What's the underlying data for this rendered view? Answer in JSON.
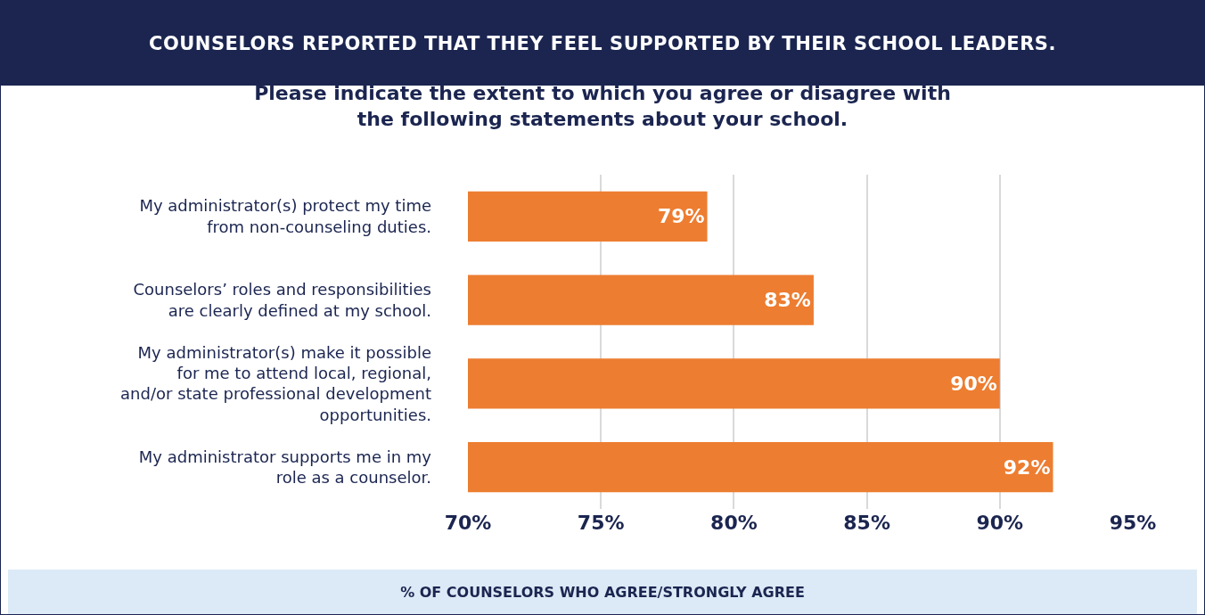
{
  "chart_data": {
    "type": "bar",
    "orientation": "horizontal",
    "title": "COUNSELORS REPORTED THAT THEY FEEL SUPPORTED BY THEIR SCHOOL LEADERS.",
    "subtitle": "Please indicate the extent to which you agree or disagree with the following statements about your school.",
    "xlabel": "% OF COUNSELORS WHO AGREE/STRONGLY AGREE",
    "categories": [
      "My administrator(s) protect my time from non-counseling duties.",
      "Counselors’ roles and responsibilities are clearly defined at my school.",
      "My administrator(s) make it possible for me to attend local, regional, and/or state professional development opportunities.",
      "My administrator supports me in my role as a counselor."
    ],
    "values": [
      79,
      83,
      90,
      92
    ],
    "value_labels": [
      "79%",
      "83%",
      "90%",
      "92%"
    ],
    "color": "#ed7d31",
    "xlim": [
      70,
      95
    ],
    "xticks": [
      {
        "value": 70,
        "label": "70%"
      },
      {
        "value": 75,
        "label": "75%"
      },
      {
        "value": 80,
        "label": "80%"
      },
      {
        "value": 85,
        "label": "85%"
      },
      {
        "value": 90,
        "label": "90%"
      },
      {
        "value": 95,
        "label": "95%"
      }
    ],
    "grid": "x"
  }
}
